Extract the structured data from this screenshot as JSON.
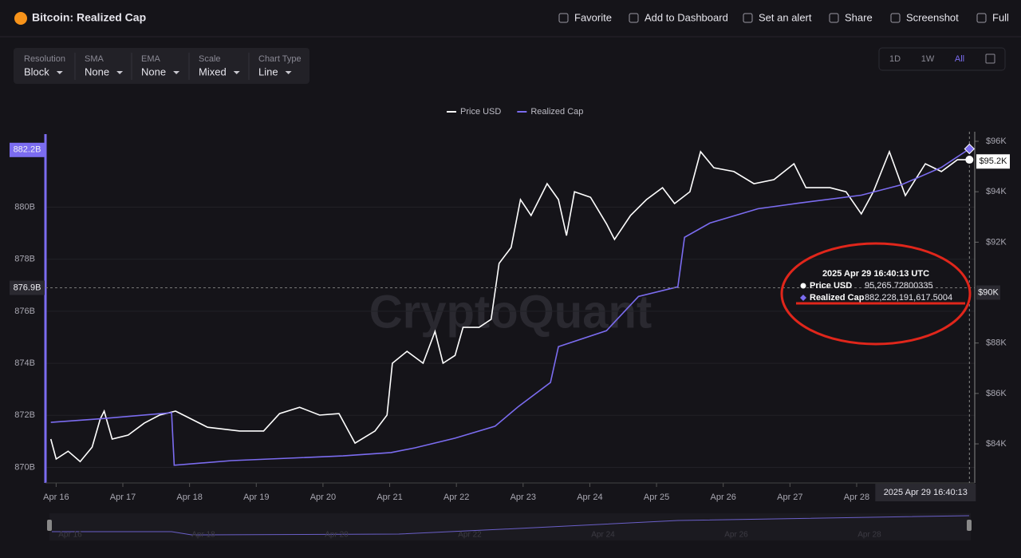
{
  "header": {
    "title": "Bitcoin: Realized Cap",
    "actions": [
      "Favorite",
      "Add to Dashboard",
      "Set an alert",
      "Share",
      "Screenshot",
      "Full"
    ]
  },
  "controls": [
    {
      "label": "Resolution",
      "value": "Block"
    },
    {
      "label": "SMA",
      "value": "None"
    },
    {
      "label": "EMA",
      "value": "None"
    },
    {
      "label": "Scale",
      "value": "Mixed"
    },
    {
      "label": "Chart Type",
      "value": "Line"
    }
  ],
  "ranges": [
    "1D",
    "1W",
    "All"
  ],
  "chart_data": {
    "type": "line",
    "watermark": "CryptoQuant",
    "xlim": [
      15.84,
      29.77
    ],
    "xticks": [
      {
        "value": 16,
        "label": "Apr 16"
      },
      {
        "value": 17,
        "label": "Apr 17"
      },
      {
        "value": 18,
        "label": "Apr 18"
      },
      {
        "value": 19,
        "label": "Apr 19"
      },
      {
        "value": 20,
        "label": "Apr 20"
      },
      {
        "value": 21,
        "label": "Apr 21"
      },
      {
        "value": 22,
        "label": "Apr 22"
      },
      {
        "value": 23,
        "label": "Apr 23"
      },
      {
        "value": 24,
        "label": "Apr 24"
      },
      {
        "value": 25,
        "label": "Apr 25"
      },
      {
        "value": 26,
        "label": "Apr 26"
      },
      {
        "value": 27,
        "label": "Apr 27"
      },
      {
        "value": 28,
        "label": "Apr 28"
      }
    ],
    "ylim": [
      869.4,
      882.9
    ],
    "yticks": [
      {
        "value": 870,
        "label": "870B"
      },
      {
        "value": 872,
        "label": "872B"
      },
      {
        "value": 874,
        "label": "874B"
      },
      {
        "value": 876,
        "label": "876B"
      },
      {
        "value": 878,
        "label": "878B"
      },
      {
        "value": 880,
        "label": "880B"
      }
    ],
    "y2lim": [
      82450,
      96380
    ],
    "y2ticks": [
      {
        "value": 84000,
        "label": "$84K"
      },
      {
        "value": 86000,
        "label": "$86K"
      },
      {
        "value": 88000,
        "label": "$88K"
      },
      {
        "value": 92000,
        "label": "$92K"
      },
      {
        "value": 94000,
        "label": "$94K"
      },
      {
        "value": 96000,
        "label": "$96K"
      }
    ],
    "grid": true,
    "series": [
      {
        "name": "Price USD",
        "color": "#ffffff",
        "axis": "y2",
        "x": [
          15.92,
          16.0,
          16.18,
          16.36,
          16.54,
          16.66,
          16.72,
          16.84,
          17.08,
          17.32,
          17.55,
          17.79,
          18.27,
          18.75,
          19.11,
          19.35,
          19.65,
          19.95,
          20.24,
          20.48,
          20.78,
          20.96,
          21.04,
          21.26,
          21.5,
          21.68,
          21.8,
          21.98,
          22.1,
          22.34,
          22.52,
          22.64,
          22.82,
          22.96,
          23.12,
          23.36,
          23.53,
          23.65,
          23.77,
          24.01,
          24.25,
          24.37,
          24.61,
          24.85,
          25.09,
          25.27,
          25.5,
          25.66,
          25.86,
          26.16,
          26.46,
          26.76,
          27.06,
          27.24,
          27.6,
          27.84,
          28.07,
          28.25,
          28.49,
          28.73,
          29.03,
          29.27,
          29.51,
          29.69
        ],
        "values": [
          84190,
          83400,
          83710,
          83300,
          83870,
          84980,
          85300,
          84190,
          84350,
          84820,
          85140,
          85300,
          84660,
          84510,
          84510,
          85200,
          85450,
          85140,
          85200,
          84030,
          84510,
          85140,
          87200,
          87670,
          87200,
          88460,
          87200,
          87510,
          88620,
          88620,
          88940,
          91160,
          91790,
          93690,
          93060,
          94320,
          93690,
          92260,
          94000,
          93780,
          92730,
          92110,
          93060,
          93690,
          94160,
          93530,
          94000,
          95590,
          94950,
          94800,
          94320,
          94480,
          95110,
          94160,
          94160,
          94000,
          93120,
          94000,
          95590,
          93850,
          95110,
          94800,
          95270,
          95270
        ]
      },
      {
        "name": "Realized Cap",
        "color": "#7b6cf0",
        "axis": "y",
        "x": [
          15.92,
          16.72,
          17.73,
          17.77,
          18.63,
          20.3,
          21.02,
          21.38,
          21.98,
          22.58,
          22.93,
          23.41,
          23.53,
          24.25,
          24.73,
          25.32,
          25.42,
          25.8,
          26.52,
          27.12,
          28.07,
          28.67,
          29.27,
          29.69
        ],
        "values": [
          871.73,
          871.88,
          872.1,
          870.08,
          870.26,
          870.44,
          870.57,
          870.75,
          871.12,
          871.58,
          872.34,
          873.26,
          874.64,
          875.25,
          876.57,
          876.94,
          878.84,
          879.39,
          879.94,
          880.15,
          880.46,
          880.86,
          881.53,
          882.24
        ]
      }
    ],
    "annotations": [
      {
        "axis": "y",
        "value": 882.2,
        "label": "882.2B"
      },
      {
        "axis": "y",
        "value": 876.9,
        "label": "876.9B"
      },
      {
        "axis": "y2",
        "value": 95200,
        "label": "$95.2K"
      },
      {
        "axis": "y2",
        "value": 90000,
        "label": "$90K"
      }
    ],
    "crosshair": {
      "x": 29.69,
      "label": "2025 Apr 29 16:40:13"
    },
    "tooltip": {
      "title": "2025 Apr 29 16:40:13 UTC",
      "rows": [
        {
          "name": "Price USD",
          "value": "95,265.72800335"
        },
        {
          "name": "Realized Cap",
          "value": "882,228,191,617.5004"
        }
      ]
    }
  },
  "navigator": {
    "labels": [
      "Apr 16",
      "Apr 18",
      "Apr 20",
      "Apr 22",
      "Apr 24",
      "Apr 26",
      "Apr 28"
    ]
  }
}
